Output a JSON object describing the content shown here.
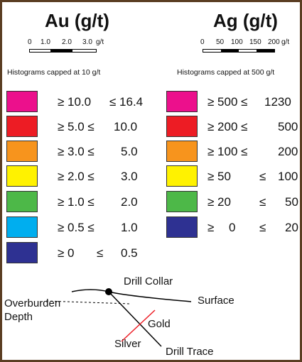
{
  "au": {
    "title": "Au (g/t)",
    "scale": {
      "v0": "0",
      "v1": "1.0",
      "v2": "2.0",
      "v3": "3.0",
      "unit": "g/t"
    },
    "caption": "Histograms capped at 10 g/t",
    "items": [
      {
        "color": "#ec108c",
        "a": "≥ 10.0",
        "b": "≤ 16.4"
      },
      {
        "color": "#ed1c24",
        "a": "≥ 5.0 ≤",
        "b": "10.0"
      },
      {
        "color": "#f7941d",
        "a": "≥ 3.0 ≤",
        "b": "5.0"
      },
      {
        "color": "#fff200",
        "a": "≥ 2.0 ≤",
        "b": "3.0"
      },
      {
        "color": "#4db848",
        "a": "≥ 1.0 ≤",
        "b": "2.0"
      },
      {
        "color": "#00aeef",
        "a": "≥ 0.5 ≤",
        "b": "1.0"
      },
      {
        "color": "#2e3192",
        "a": "≥ 0",
        "mid": "≤",
        "b": "0.5"
      }
    ]
  },
  "ag": {
    "title": "Ag (g/t)",
    "scale": {
      "v0": "0",
      "v1": "50",
      "v2": "100",
      "v3": "150",
      "v4": "200",
      "unit": "g/t"
    },
    "caption": "Histograms capped at 500 g/t",
    "items": [
      {
        "color": "#ec108c",
        "a": "≥ 500 ≤",
        "b": "1230"
      },
      {
        "color": "#ed1c24",
        "a": "≥ 200 ≤",
        "b": "500"
      },
      {
        "color": "#f7941d",
        "a": "≥ 100 ≤",
        "b": "200"
      },
      {
        "color": "#fff200",
        "a": "≥ 50",
        "mid": "≤",
        "b": "100"
      },
      {
        "color": "#4db848",
        "a": "≥ 20",
        "mid": "≤",
        "b": "50"
      },
      {
        "color": "#2e3192",
        "a": "≥",
        "n": "0",
        "mid": "≤",
        "b": "20"
      }
    ]
  },
  "diagram": {
    "drill_collar": "Drill Collar",
    "surface": "Surface",
    "overburden": "Overburden",
    "depth": "Depth",
    "gold": "Gold",
    "silver": "Silver",
    "drill_trace": "Drill Trace"
  }
}
